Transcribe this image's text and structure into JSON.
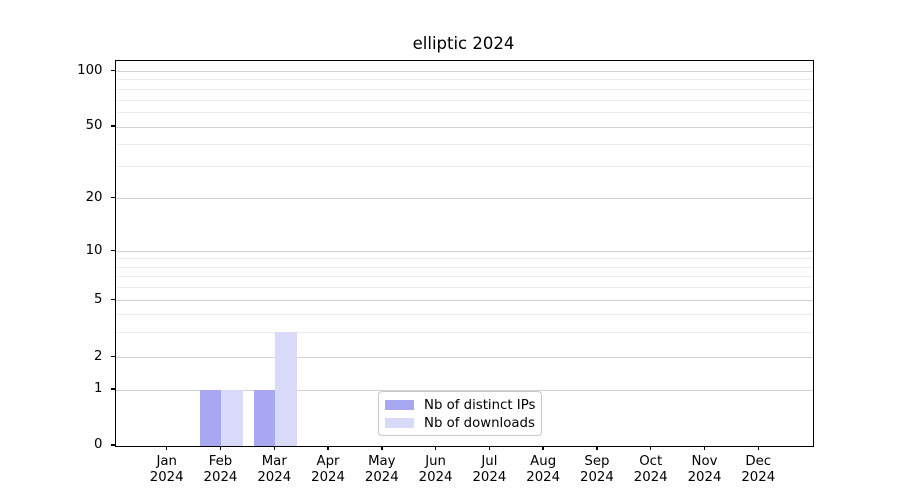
{
  "title": "elliptic 2024",
  "chart_data": {
    "type": "bar",
    "title": "elliptic 2024",
    "x_categories": [
      "Jan 2024",
      "Feb 2024",
      "Mar 2024",
      "Apr 2024",
      "May 2024",
      "Jun 2024",
      "Jul 2024",
      "Aug 2024",
      "Sep 2024",
      "Oct 2024",
      "Nov 2024",
      "Dec 2024"
    ],
    "series": [
      {
        "name": "Nb of distinct IPs",
        "color": "#a8a8f2",
        "values": [
          0,
          1,
          1,
          0,
          0,
          0,
          0,
          0,
          0,
          0,
          0,
          0
        ]
      },
      {
        "name": "Nb of downloads",
        "color": "#d9d9f9",
        "values": [
          0,
          1,
          3,
          0,
          0,
          0,
          0,
          0,
          0,
          0,
          0,
          0
        ]
      }
    ],
    "yscale": "symlog",
    "ylim": [
      0,
      120
    ],
    "major_yticks": [
      0,
      1,
      2,
      5,
      10,
      20,
      50,
      100
    ],
    "minor_yticks": [
      3,
      4,
      6,
      7,
      8,
      9,
      30,
      40,
      60,
      70,
      80,
      90
    ],
    "grid": "horizontal",
    "legend_position": "lower center"
  },
  "colors": {
    "bar_distinct_ips": "#a8a8f2",
    "bar_downloads": "#d9d9f9",
    "grid_major": "#d2d2d2",
    "grid_minor": "#ececec",
    "axis_spine": "#000000",
    "legend_border": "#c9c9c9",
    "background": "#ffffff"
  }
}
